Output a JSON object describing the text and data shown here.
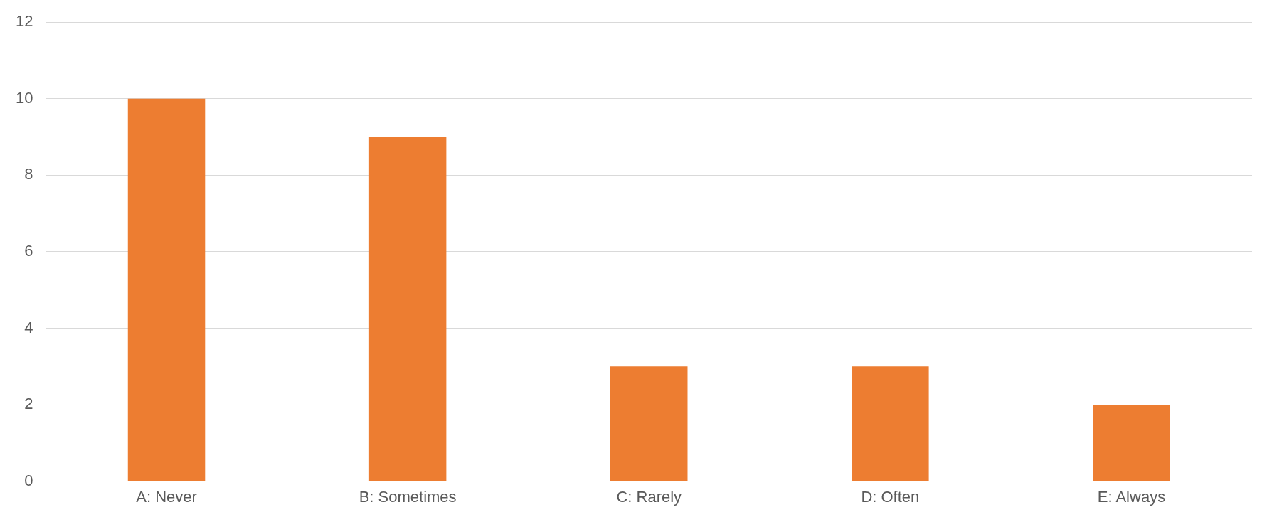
{
  "chart_data": {
    "type": "bar",
    "categories": [
      "A: Never",
      "B: Sometimes",
      "C: Rarely",
      "D: Often",
      "E: Always"
    ],
    "values": [
      10,
      9,
      3,
      3,
      2
    ],
    "color": "#ed7d31",
    "ylim": [
      0,
      12
    ],
    "yticks": [
      0,
      2,
      4,
      6,
      8,
      10,
      12
    ],
    "grid": "y",
    "legend": false
  }
}
